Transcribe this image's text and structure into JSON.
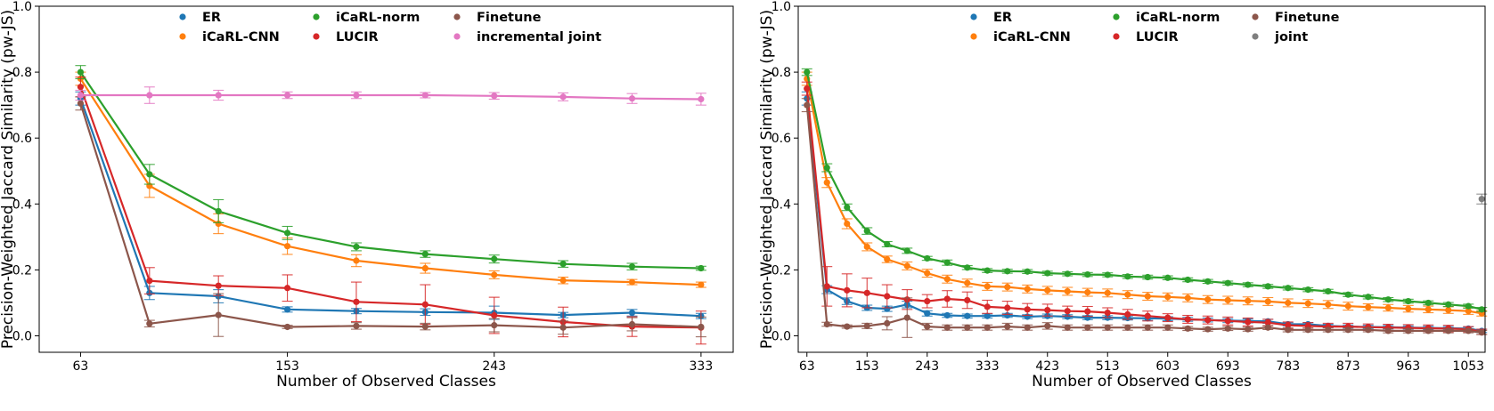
{
  "chart_data": [
    {
      "type": "line",
      "xlabel": "Number of Observed Classes",
      "ylabel": "Precision-Weighted Jaccard Similarity (pw-JS)",
      "xlim": [
        45,
        347
      ],
      "ylim": [
        -0.05,
        1.0
      ],
      "xticks": [
        63,
        153,
        243,
        333
      ],
      "yticks": [
        0.0,
        0.2,
        0.4,
        0.6,
        0.8,
        1.0
      ],
      "x": [
        63,
        93,
        123,
        153,
        183,
        213,
        243,
        273,
        303,
        333
      ],
      "legend_location": "top-center",
      "series": [
        {
          "name": "ER",
          "color": "#1f77b4",
          "values": [
            0.72,
            0.13,
            0.12,
            0.08,
            0.075,
            0.072,
            0.07,
            0.063,
            0.07,
            0.06
          ],
          "errors": [
            0.02,
            0.02,
            0.02,
            0.008,
            0.008,
            0.01,
            0.02,
            0.008,
            0.01,
            0.008
          ]
        },
        {
          "name": "iCaRL-CNN",
          "color": "#ff7f0e",
          "values": [
            0.78,
            0.455,
            0.34,
            0.272,
            0.228,
            0.205,
            0.185,
            0.168,
            0.163,
            0.155
          ],
          "errors": [
            0.02,
            0.035,
            0.03,
            0.025,
            0.018,
            0.015,
            0.012,
            0.01,
            0.008,
            0.008
          ]
        },
        {
          "name": "iCaRL-norm",
          "color": "#2ca02c",
          "values": [
            0.8,
            0.49,
            0.378,
            0.312,
            0.27,
            0.248,
            0.233,
            0.218,
            0.21,
            0.205
          ],
          "errors": [
            0.02,
            0.03,
            0.035,
            0.02,
            0.012,
            0.01,
            0.012,
            0.01,
            0.01,
            0.006
          ]
        },
        {
          "name": "LUCIR",
          "color": "#d62728",
          "values": [
            0.755,
            0.167,
            0.152,
            0.145,
            0.103,
            0.095,
            0.062,
            0.042,
            0.028,
            0.025
          ],
          "errors": [
            0.03,
            0.04,
            0.03,
            0.04,
            0.06,
            0.06,
            0.055,
            0.045,
            0.03,
            0.05
          ]
        },
        {
          "name": "Finetune",
          "color": "#8c564b",
          "values": [
            0.705,
            0.037,
            0.063,
            0.027,
            0.03,
            0.028,
            0.032,
            0.025,
            0.035,
            0.027
          ],
          "errors": [
            0.02,
            0.01,
            0.065,
            0.005,
            0.01,
            0.01,
            0.02,
            0.02,
            0.02,
            0.03
          ]
        },
        {
          "name": "incremental joint",
          "color": "#e377c2",
          "values": [
            0.73,
            0.73,
            0.73,
            0.73,
            0.73,
            0.73,
            0.728,
            0.725,
            0.72,
            0.718
          ],
          "errors": [
            0.015,
            0.025,
            0.015,
            0.01,
            0.01,
            0.008,
            0.01,
            0.012,
            0.015,
            0.018
          ]
        }
      ]
    },
    {
      "type": "line",
      "xlabel": "Number of Observed Classes",
      "ylabel": "Precision-Weighted Jaccard Similarity (pw-JS)",
      "xlim": [
        50,
        1078
      ],
      "ylim": [
        -0.05,
        1.0
      ],
      "xticks": [
        63,
        153,
        243,
        333,
        423,
        513,
        603,
        693,
        783,
        873,
        963,
        1053
      ],
      "yticks": [
        0.0,
        0.2,
        0.4,
        0.6,
        0.8,
        1.0
      ],
      "x": [
        63,
        93,
        123,
        153,
        183,
        213,
        243,
        273,
        303,
        333,
        363,
        393,
        423,
        453,
        483,
        513,
        543,
        573,
        603,
        633,
        663,
        693,
        723,
        753,
        783,
        813,
        843,
        873,
        903,
        933,
        963,
        993,
        1023,
        1053,
        1073
      ],
      "legend_location": "top-center",
      "series": [
        {
          "name": "ER",
          "color": "#1f77b4",
          "values": [
            0.72,
            0.14,
            0.105,
            0.085,
            0.082,
            0.095,
            0.068,
            0.062,
            0.06,
            0.06,
            0.062,
            0.058,
            0.06,
            0.058,
            0.055,
            0.055,
            0.054,
            0.053,
            0.052,
            0.05,
            0.048,
            0.046,
            0.045,
            0.044,
            0.035,
            0.035,
            0.03,
            0.028,
            0.027,
            0.026,
            0.025,
            0.024,
            0.023,
            0.022,
            0.015
          ],
          "errors": [
            0.02,
            0.012,
            0.01,
            0.008,
            0.008,
            0.01,
            0.008,
            0.006,
            0.006,
            0.006,
            0.006,
            0.006,
            0.006,
            0.006,
            0.006,
            0.006,
            0.006,
            0.006,
            0.006,
            0.006,
            0.006,
            0.006,
            0.006,
            0.006,
            0.005,
            0.005,
            0.005,
            0.005,
            0.005,
            0.005,
            0.005,
            0.005,
            0.005,
            0.005,
            0.005
          ]
        },
        {
          "name": "iCaRL-CNN",
          "color": "#ff7f0e",
          "values": [
            0.78,
            0.465,
            0.34,
            0.27,
            0.232,
            0.212,
            0.19,
            0.172,
            0.16,
            0.15,
            0.148,
            0.142,
            0.138,
            0.135,
            0.132,
            0.13,
            0.125,
            0.12,
            0.118,
            0.115,
            0.11,
            0.108,
            0.106,
            0.104,
            0.1,
            0.098,
            0.095,
            0.09,
            0.087,
            0.085,
            0.082,
            0.08,
            0.078,
            0.075,
            0.068
          ],
          "errors": [
            0.02,
            0.015,
            0.015,
            0.012,
            0.01,
            0.012,
            0.012,
            0.012,
            0.012,
            0.012,
            0.012,
            0.012,
            0.012,
            0.012,
            0.012,
            0.012,
            0.012,
            0.012,
            0.012,
            0.012,
            0.012,
            0.012,
            0.012,
            0.012,
            0.012,
            0.012,
            0.012,
            0.012,
            0.01,
            0.01,
            0.01,
            0.01,
            0.01,
            0.01,
            0.008
          ]
        },
        {
          "name": "iCaRL-norm",
          "color": "#2ca02c",
          "values": [
            0.8,
            0.51,
            0.39,
            0.318,
            0.278,
            0.258,
            0.235,
            0.222,
            0.207,
            0.198,
            0.196,
            0.195,
            0.19,
            0.188,
            0.186,
            0.185,
            0.18,
            0.178,
            0.176,
            0.17,
            0.165,
            0.16,
            0.155,
            0.15,
            0.145,
            0.14,
            0.135,
            0.125,
            0.118,
            0.11,
            0.105,
            0.1,
            0.095,
            0.09,
            0.08
          ],
          "errors": [
            0.01,
            0.012,
            0.01,
            0.01,
            0.008,
            0.008,
            0.006,
            0.008,
            0.006,
            0.006,
            0.006,
            0.006,
            0.006,
            0.006,
            0.006,
            0.006,
            0.006,
            0.006,
            0.006,
            0.006,
            0.006,
            0.006,
            0.006,
            0.006,
            0.006,
            0.006,
            0.006,
            0.006,
            0.006,
            0.006,
            0.006,
            0.006,
            0.006,
            0.006,
            0.006
          ]
        },
        {
          "name": "LUCIR",
          "color": "#d62728",
          "values": [
            0.75,
            0.15,
            0.138,
            0.13,
            0.12,
            0.11,
            0.105,
            0.112,
            0.108,
            0.088,
            0.085,
            0.08,
            0.078,
            0.075,
            0.074,
            0.07,
            0.065,
            0.06,
            0.055,
            0.05,
            0.048,
            0.045,
            0.042,
            0.04,
            0.032,
            0.03,
            0.028,
            0.028,
            0.026,
            0.025,
            0.024,
            0.023,
            0.022,
            0.02,
            0.012
          ],
          "errors": [
            0.02,
            0.06,
            0.05,
            0.045,
            0.035,
            0.03,
            0.02,
            0.025,
            0.025,
            0.02,
            0.02,
            0.018,
            0.018,
            0.015,
            0.015,
            0.015,
            0.015,
            0.015,
            0.012,
            0.012,
            0.012,
            0.012,
            0.012,
            0.01,
            0.01,
            0.01,
            0.01,
            0.01,
            0.01,
            0.01,
            0.01,
            0.01,
            0.01,
            0.008,
            0.008
          ]
        },
        {
          "name": "Finetune",
          "color": "#8c564b",
          "values": [
            0.7,
            0.035,
            0.028,
            0.03,
            0.038,
            0.055,
            0.028,
            0.025,
            0.025,
            0.025,
            0.028,
            0.025,
            0.03,
            0.025,
            0.025,
            0.025,
            0.025,
            0.025,
            0.025,
            0.022,
            0.02,
            0.022,
            0.02,
            0.025,
            0.018,
            0.018,
            0.018,
            0.018,
            0.018,
            0.015,
            0.015,
            0.015,
            0.015,
            0.015,
            0.01
          ],
          "errors": [
            0.02,
            0.006,
            0.005,
            0.008,
            0.02,
            0.06,
            0.01,
            0.008,
            0.008,
            0.008,
            0.01,
            0.008,
            0.01,
            0.008,
            0.008,
            0.008,
            0.008,
            0.008,
            0.008,
            0.006,
            0.006,
            0.006,
            0.006,
            0.006,
            0.006,
            0.006,
            0.006,
            0.006,
            0.006,
            0.006,
            0.006,
            0.006,
            0.006,
            0.006,
            0.006
          ]
        },
        {
          "name": "joint",
          "color": "#7f7f7f",
          "x": [
            1073
          ],
          "values": [
            0.415
          ],
          "errors": [
            0.015
          ],
          "marker_only": true
        }
      ]
    }
  ]
}
